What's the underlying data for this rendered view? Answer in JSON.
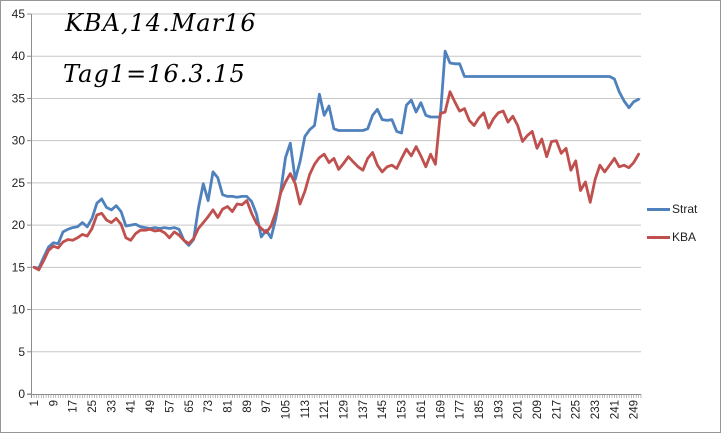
{
  "annotations": {
    "line1": "KBA,14.Mar16",
    "line2": "Tag1=16.3.15"
  },
  "legend": {
    "items": [
      {
        "label": "Strat",
        "color": "#4F81BD"
      },
      {
        "label": "KBA",
        "color": "#C0504D"
      }
    ]
  },
  "colors": {
    "gridline": "#c6c6c6",
    "axis": "#8c8c8c",
    "tick_text": "#1f1f1f",
    "background": "#ffffff"
  },
  "chart_data": {
    "type": "line",
    "title": "",
    "xlabel": "",
    "ylabel": "",
    "grid": "horizontal",
    "legend_position": "right",
    "ylim": [
      0,
      45
    ],
    "y_ticks": [
      0,
      5,
      10,
      15,
      20,
      25,
      30,
      35,
      40,
      45
    ],
    "n_points": 252,
    "x_start": 1,
    "x_step": 2,
    "x_tick_labels": [
      1,
      9,
      17,
      25,
      33,
      41,
      49,
      57,
      65,
      73,
      81,
      89,
      97,
      105,
      113,
      121,
      129,
      137,
      145,
      153,
      161,
      169,
      177,
      185,
      193,
      201,
      209,
      217,
      225,
      233,
      241,
      249
    ],
    "series": [
      {
        "name": "Strat",
        "color": "#4F81BD",
        "values": [
          15.0,
          14.9,
          16.2,
          17.4,
          17.9,
          17.8,
          19.2,
          19.5,
          19.7,
          19.8,
          20.3,
          19.8,
          20.8,
          22.6,
          23.1,
          22.1,
          21.8,
          22.3,
          21.6,
          19.9,
          20.0,
          20.1,
          19.8,
          19.7,
          19.6,
          19.7,
          19.6,
          19.7,
          19.6,
          19.7,
          19.5,
          18.2,
          17.6,
          18.3,
          22.0,
          24.9,
          22.9,
          26.3,
          25.6,
          23.6,
          23.4,
          23.4,
          23.3,
          23.4,
          23.4,
          22.8,
          21.3,
          18.6,
          19.4,
          18.5,
          20.8,
          24.0,
          28.0,
          29.7,
          25.4,
          27.5,
          30.5,
          31.3,
          31.8,
          35.5,
          33.0,
          34.1,
          31.4,
          31.2,
          31.2,
          31.2,
          31.2,
          31.2,
          31.2,
          31.4,
          33.0,
          33.7,
          32.5,
          32.4,
          32.5,
          31.1,
          30.9,
          34.2,
          34.8,
          33.4,
          34.5,
          33.0,
          32.8,
          32.8,
          32.8,
          40.6,
          39.2,
          39.1,
          39.1,
          37.6,
          37.6,
          37.6,
          37.6,
          37.6,
          37.6,
          37.6,
          37.6,
          37.6,
          37.6,
          37.6,
          37.6,
          37.6,
          37.6,
          37.6,
          37.6,
          37.6,
          37.6,
          37.6,
          37.6,
          37.6,
          37.6,
          37.6,
          37.6,
          37.6,
          37.6,
          37.6,
          37.6,
          37.6,
          37.6,
          37.6,
          37.3,
          35.8,
          34.7,
          33.9,
          34.6,
          34.9
        ]
      },
      {
        "name": "KBA",
        "color": "#C0504D",
        "values": [
          15.0,
          14.7,
          15.8,
          17.0,
          17.5,
          17.3,
          18.0,
          18.3,
          18.2,
          18.5,
          18.9,
          18.7,
          19.6,
          21.2,
          21.4,
          20.6,
          20.3,
          20.8,
          20.1,
          18.5,
          18.2,
          19.0,
          19.4,
          19.4,
          19.5,
          19.3,
          19.4,
          19.1,
          18.5,
          19.2,
          18.8,
          18.2,
          17.8,
          18.4,
          19.6,
          20.3,
          21.0,
          21.8,
          20.9,
          21.9,
          22.2,
          21.6,
          22.5,
          22.4,
          22.9,
          21.4,
          20.2,
          19.6,
          19.1,
          19.9,
          21.5,
          23.8,
          25.1,
          26.1,
          24.9,
          22.5,
          24.0,
          26.0,
          27.2,
          28.0,
          28.4,
          27.4,
          27.9,
          26.6,
          27.3,
          28.1,
          27.5,
          26.9,
          26.5,
          27.9,
          28.6,
          27.1,
          26.3,
          26.9,
          27.1,
          26.7,
          27.9,
          29.0,
          28.2,
          29.3,
          28.2,
          26.9,
          28.4,
          27.2,
          33.2,
          33.4,
          35.8,
          34.6,
          33.5,
          33.8,
          32.4,
          31.8,
          32.7,
          33.3,
          31.5,
          32.6,
          33.3,
          33.5,
          32.2,
          32.9,
          31.8,
          29.9,
          30.6,
          31.1,
          29.1,
          30.2,
          28.1,
          29.9,
          30.0,
          28.5,
          29.1,
          26.5,
          27.6,
          24.1,
          25.1,
          22.7,
          25.4,
          27.1,
          26.3,
          27.1,
          27.9,
          26.9,
          27.1,
          26.8,
          27.4,
          28.4
        ]
      }
    ]
  }
}
